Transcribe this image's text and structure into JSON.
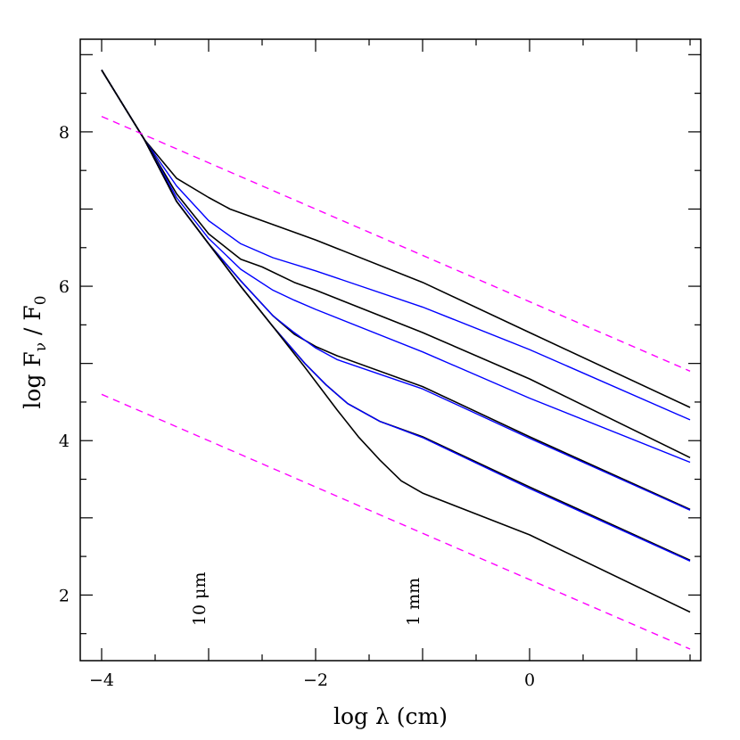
{
  "chart_data": {
    "type": "line",
    "xlabel": "log λ (cm)",
    "ylabel": "log Fν / F0",
    "ylabel_parts": {
      "main": "log F",
      "sub1": "ν",
      "mid": " / F",
      "sub2": "0"
    },
    "xlim": [
      -4.2,
      1.6
    ],
    "ylim": [
      1.15,
      9.2
    ],
    "xticks": [
      -4,
      -2,
      0
    ],
    "yticks": [
      2,
      4,
      6,
      8
    ],
    "grid": false,
    "legend": "none",
    "colors": {
      "black": "#000000",
      "blue": "#0000ff",
      "magenta": "#ff00ff"
    },
    "annotations": [
      {
        "text": "10 μm",
        "x": -3.0,
        "y": 1.6
      },
      {
        "text": "1 mm",
        "x": -1.0,
        "y": 1.6
      }
    ],
    "series": [
      {
        "color": "black",
        "dash": false,
        "x": [
          -4,
          -3.6,
          -3.3,
          -3.0,
          -2.8,
          -2.5,
          -2.0,
          -1.0,
          0.0,
          1.5
        ],
        "y": [
          8.8,
          7.9,
          7.4,
          7.15,
          7.0,
          6.85,
          6.6,
          6.05,
          5.4,
          4.43
        ]
      },
      {
        "color": "blue",
        "dash": false,
        "x": [
          -4,
          -3.6,
          -3.3,
          -3.0,
          -2.7,
          -2.4,
          -2.0,
          -1.0,
          0.0,
          1.5
        ],
        "y": [
          8.8,
          7.9,
          7.3,
          6.85,
          6.55,
          6.37,
          6.2,
          5.73,
          5.18,
          4.27
        ]
      },
      {
        "color": "black",
        "dash": false,
        "x": [
          -4,
          -3.6,
          -3.3,
          -3.0,
          -2.7,
          -2.5,
          -2.2,
          -2.0,
          -1.0,
          0.0,
          1.5
        ],
        "y": [
          8.8,
          7.9,
          7.2,
          6.68,
          6.35,
          6.25,
          6.05,
          5.95,
          5.4,
          4.8,
          3.78
        ]
      },
      {
        "color": "blue",
        "dash": false,
        "x": [
          -4,
          -3.6,
          -3.3,
          -3.0,
          -2.7,
          -2.4,
          -2.2,
          -2.0,
          -1.0,
          0.0,
          1.5
        ],
        "y": [
          8.8,
          7.9,
          7.15,
          6.62,
          6.22,
          5.95,
          5.82,
          5.7,
          5.15,
          4.55,
          3.72
        ]
      },
      {
        "color": "black",
        "dash": false,
        "x": [
          -4,
          -3.6,
          -3.3,
          -3.0,
          -2.7,
          -2.4,
          -2.2,
          -2.0,
          -1.8,
          -1.0,
          0.0,
          1.5
        ],
        "y": [
          8.8,
          7.9,
          7.1,
          6.55,
          6.07,
          5.62,
          5.38,
          5.22,
          5.1,
          4.7,
          4.05,
          3.11
        ]
      },
      {
        "color": "blue",
        "dash": false,
        "x": [
          -4,
          -3.6,
          -3.3,
          -3.0,
          -2.7,
          -2.4,
          -2.2,
          -2.0,
          -1.8,
          -1.0,
          0.0,
          1.5
        ],
        "y": [
          8.8,
          7.9,
          7.1,
          6.55,
          6.07,
          5.62,
          5.4,
          5.2,
          5.05,
          4.67,
          4.03,
          3.1
        ]
      },
      {
        "color": "black",
        "dash": false,
        "x": [
          -4,
          -3.6,
          -3.3,
          -3.0,
          -2.7,
          -2.4,
          -2.1,
          -1.9,
          -1.7,
          -1.4,
          -1.0,
          0.0,
          1.5
        ],
        "y": [
          8.8,
          7.9,
          7.1,
          6.55,
          6.0,
          5.48,
          5.0,
          4.72,
          4.48,
          4.25,
          4.05,
          3.4,
          2.45
        ]
      },
      {
        "color": "blue",
        "dash": false,
        "x": [
          -4,
          -3.6,
          -3.3,
          -3.0,
          -2.7,
          -2.4,
          -2.1,
          -1.9,
          -1.7,
          -1.4,
          -1.0,
          0.0,
          1.5
        ],
        "y": [
          8.8,
          7.9,
          7.1,
          6.55,
          6.0,
          5.48,
          5.0,
          4.72,
          4.48,
          4.25,
          4.04,
          3.38,
          2.44
        ]
      },
      {
        "color": "black",
        "dash": false,
        "x": [
          -4,
          -3.6,
          -3.3,
          -3.0,
          -2.7,
          -2.4,
          -2.1,
          -1.8,
          -1.6,
          -1.4,
          -1.2,
          -1.0,
          -0.5,
          0.0,
          1.5
        ],
        "y": [
          8.8,
          7.9,
          7.1,
          6.55,
          6.0,
          5.48,
          4.95,
          4.4,
          4.05,
          3.75,
          3.48,
          3.32,
          3.05,
          2.78,
          1.78
        ]
      },
      {
        "color": "magenta",
        "dash": true,
        "x": [
          -4,
          1.5
        ],
        "y": [
          8.2,
          4.9
        ]
      },
      {
        "color": "magenta",
        "dash": true,
        "x": [
          -4,
          1.5
        ],
        "y": [
          4.6,
          1.3
        ]
      }
    ]
  }
}
